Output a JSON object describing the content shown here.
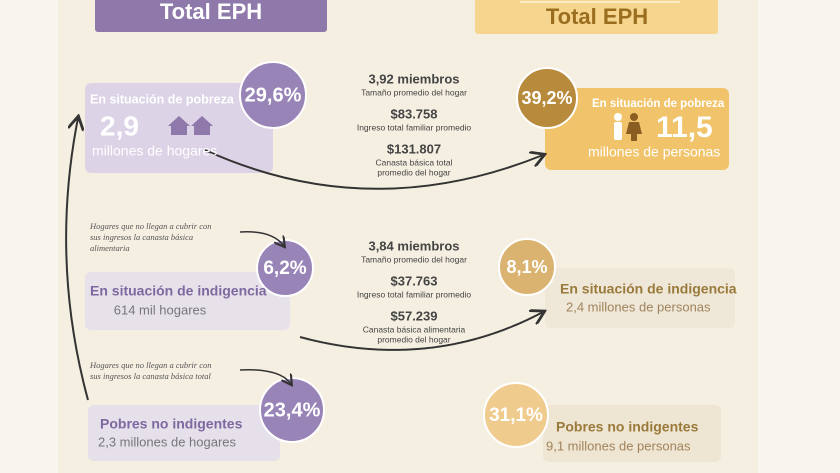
{
  "headers": {
    "left": "Total EPH",
    "right": "Total EPH"
  },
  "households": [
    {
      "percent": "29,6%",
      "label": "En situación de pobreza",
      "value": "2,9",
      "unit": "millones de hogares"
    },
    {
      "percent": "6,2%",
      "label": "En situación de indigencia",
      "unit": "614 mil hogares"
    },
    {
      "percent": "23,4%",
      "label": "Pobres no indigentes",
      "unit": "2,3 millones de hogares"
    }
  ],
  "people": [
    {
      "percent": "39,2%",
      "label": "En situación de pobreza",
      "value": "11,5",
      "unit": "millones de personas"
    },
    {
      "percent": "8,1%",
      "label": "En situación de indigencia",
      "unit": "2,4 millones de personas"
    },
    {
      "percent": "31,1%",
      "label": "Pobres no indigentes",
      "unit": "9,1 millones de personas"
    }
  ],
  "notes": [
    [
      "Hogares que no llegan a cubrir con",
      "sus ingresos la canasta básica",
      "alimentaria"
    ],
    [
      "Hogares que no llegan a cubrir con",
      "sus ingresos la canasta básica total"
    ]
  ],
  "stats": [
    [
      {
        "value": "3,92 miembros",
        "label": [
          "Tamaño promedio del hogar"
        ]
      },
      {
        "value": "$83.758",
        "label": [
          "Ingreso total familiar promedio"
        ]
      },
      {
        "value": "$131.807",
        "label": [
          "Canasta básica total",
          "promedio del hogar"
        ]
      }
    ],
    [
      {
        "value": "3,84 miembros",
        "label": [
          "Tamaño promedio del hogar"
        ]
      },
      {
        "value": "$37.763",
        "label": [
          "Ingreso total familiar promedio"
        ]
      },
      {
        "value": "$57.239",
        "label": [
          "Canasta básica alimentaria",
          "promedio del hogar"
        ]
      }
    ]
  ]
}
